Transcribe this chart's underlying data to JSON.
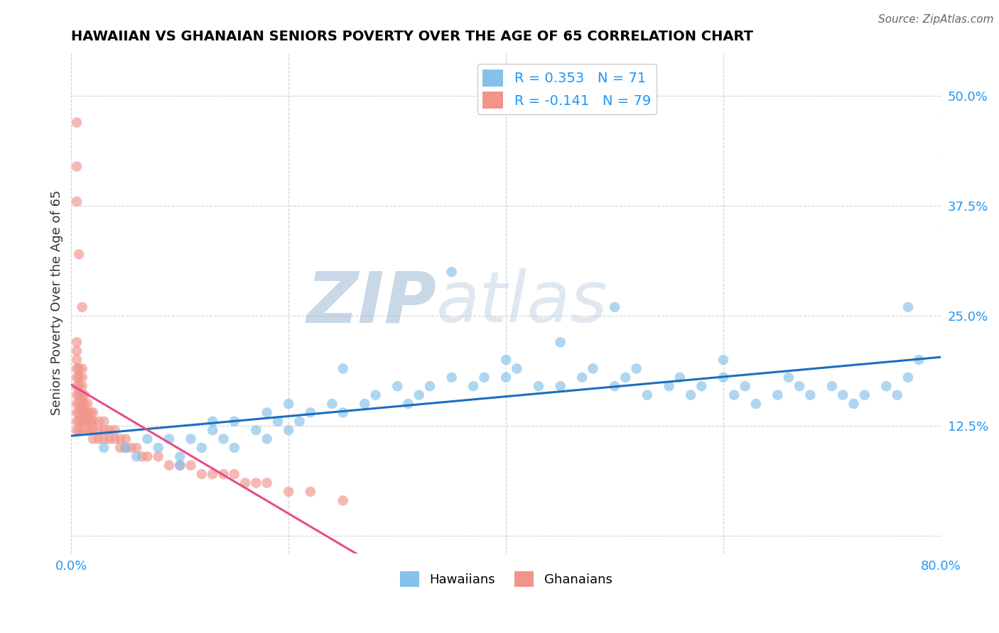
{
  "title": "HAWAIIAN VS GHANAIAN SENIORS POVERTY OVER THE AGE OF 65 CORRELATION CHART",
  "source": "Source: ZipAtlas.com",
  "ylabel": "Seniors Poverty Over the Age of 65",
  "xlim": [
    0.0,
    0.8
  ],
  "ylim": [
    -0.02,
    0.55
  ],
  "yticks": [
    0.0,
    0.125,
    0.25,
    0.375,
    0.5
  ],
  "ytick_labels": [
    "",
    "12.5%",
    "25.0%",
    "37.5%",
    "50.0%"
  ],
  "xticks": [
    0.0,
    0.2,
    0.4,
    0.6,
    0.8
  ],
  "xtick_labels": [
    "0.0%",
    "",
    "",
    "",
    "80.0%"
  ],
  "hawaiian_R": 0.353,
  "hawaiian_N": 71,
  "ghanaian_R": -0.141,
  "ghanaian_N": 79,
  "hawaiian_color": "#85C1E9",
  "ghanaian_color": "#F1948A",
  "hawaiian_line_color": "#1A6EBF",
  "ghanaian_line_color": "#E74C8B",
  "legend_text_color": "#2196F3",
  "watermark_color": "#C8D8EC",
  "background_color": "#ffffff",
  "grid_color": "#cccccc",
  "hawaiian_x": [
    0.03,
    0.05,
    0.06,
    0.07,
    0.08,
    0.09,
    0.1,
    0.11,
    0.12,
    0.13,
    0.14,
    0.15,
    0.17,
    0.18,
    0.19,
    0.2,
    0.21,
    0.22,
    0.24,
    0.25,
    0.27,
    0.28,
    0.3,
    0.31,
    0.32,
    0.33,
    0.35,
    0.37,
    0.38,
    0.4,
    0.41,
    0.43,
    0.45,
    0.47,
    0.48,
    0.5,
    0.51,
    0.52,
    0.53,
    0.55,
    0.56,
    0.57,
    0.58,
    0.6,
    0.61,
    0.62,
    0.63,
    0.65,
    0.66,
    0.67,
    0.68,
    0.7,
    0.71,
    0.72,
    0.73,
    0.75,
    0.76,
    0.77,
    0.78,
    0.35,
    0.5,
    0.6,
    0.4,
    0.25,
    0.2,
    0.18,
    0.15,
    0.13,
    0.1,
    0.45,
    0.77
  ],
  "hawaiian_y": [
    0.1,
    0.1,
    0.09,
    0.11,
    0.1,
    0.11,
    0.09,
    0.11,
    0.1,
    0.12,
    0.11,
    0.1,
    0.12,
    0.11,
    0.13,
    0.12,
    0.13,
    0.14,
    0.15,
    0.14,
    0.15,
    0.16,
    0.17,
    0.15,
    0.16,
    0.17,
    0.18,
    0.17,
    0.18,
    0.18,
    0.19,
    0.17,
    0.17,
    0.18,
    0.19,
    0.17,
    0.18,
    0.19,
    0.16,
    0.17,
    0.18,
    0.16,
    0.17,
    0.18,
    0.16,
    0.17,
    0.15,
    0.16,
    0.18,
    0.17,
    0.16,
    0.17,
    0.16,
    0.15,
    0.16,
    0.17,
    0.16,
    0.18,
    0.2,
    0.3,
    0.26,
    0.2,
    0.2,
    0.19,
    0.15,
    0.14,
    0.13,
    0.13,
    0.08,
    0.22,
    0.26
  ],
  "ghanaian_x": [
    0.005,
    0.005,
    0.005,
    0.005,
    0.005,
    0.005,
    0.005,
    0.005,
    0.005,
    0.005,
    0.005,
    0.007,
    0.007,
    0.007,
    0.007,
    0.007,
    0.007,
    0.007,
    0.007,
    0.01,
    0.01,
    0.01,
    0.01,
    0.01,
    0.01,
    0.01,
    0.01,
    0.012,
    0.012,
    0.012,
    0.012,
    0.015,
    0.015,
    0.015,
    0.015,
    0.018,
    0.018,
    0.018,
    0.02,
    0.02,
    0.02,
    0.02,
    0.025,
    0.025,
    0.025,
    0.03,
    0.03,
    0.03,
    0.035,
    0.035,
    0.04,
    0.04,
    0.045,
    0.045,
    0.05,
    0.05,
    0.055,
    0.06,
    0.065,
    0.07,
    0.08,
    0.09,
    0.1,
    0.11,
    0.12,
    0.13,
    0.14,
    0.15,
    0.16,
    0.17,
    0.18,
    0.2,
    0.22,
    0.25,
    0.005,
    0.005,
    0.005,
    0.007,
    0.01
  ],
  "ghanaian_y": [
    0.12,
    0.13,
    0.14,
    0.15,
    0.16,
    0.17,
    0.18,
    0.19,
    0.2,
    0.21,
    0.22,
    0.12,
    0.13,
    0.14,
    0.15,
    0.16,
    0.17,
    0.18,
    0.19,
    0.12,
    0.13,
    0.14,
    0.15,
    0.16,
    0.17,
    0.18,
    0.19,
    0.13,
    0.14,
    0.15,
    0.16,
    0.12,
    0.13,
    0.14,
    0.15,
    0.12,
    0.13,
    0.14,
    0.11,
    0.12,
    0.13,
    0.14,
    0.11,
    0.12,
    0.13,
    0.11,
    0.12,
    0.13,
    0.11,
    0.12,
    0.11,
    0.12,
    0.1,
    0.11,
    0.1,
    0.11,
    0.1,
    0.1,
    0.09,
    0.09,
    0.09,
    0.08,
    0.08,
    0.08,
    0.07,
    0.07,
    0.07,
    0.07,
    0.06,
    0.06,
    0.06,
    0.05,
    0.05,
    0.04,
    0.47,
    0.42,
    0.38,
    0.32,
    0.26
  ]
}
